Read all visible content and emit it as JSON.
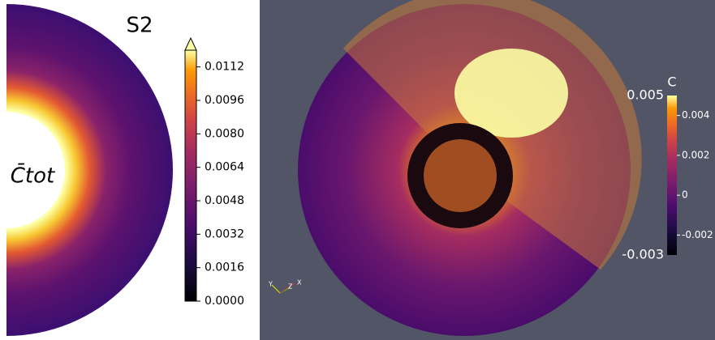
{
  "left_panel": {
    "title": "S2",
    "field_label": "C̄tot",
    "colorbar": {
      "range": [
        0,
        0.012
      ],
      "ticks": [
        {
          "value": 0,
          "label": "0.0000"
        },
        {
          "value": 0.0016,
          "label": "0.0016"
        },
        {
          "value": 0.0032,
          "label": "0.0032"
        },
        {
          "value": 0.0048,
          "label": "0.0048"
        },
        {
          "value": 0.0064,
          "label": "0.0064"
        },
        {
          "value": 0.008,
          "label": "0.0080"
        },
        {
          "value": 0.0096,
          "label": "0.0096"
        },
        0.0112
      ]
    }
  },
  "right_panel": {
    "colorbar": {
      "title": "C",
      "range": [
        -0.003,
        0.005
      ],
      "ticks": [
        -0.002,
        0,
        0.002,
        0.004
      ]
    },
    "axes_triad": [
      "Y",
      "Z",
      "X"
    ]
  }
}
